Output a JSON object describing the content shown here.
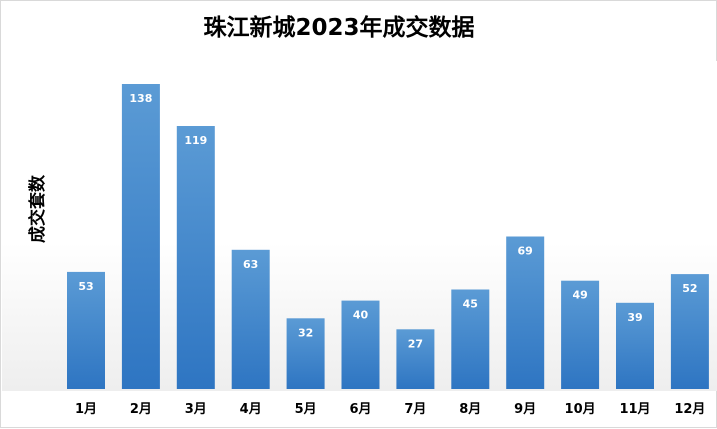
{
  "chart_data": {
    "type": "bar",
    "title": "珠江新城2023年成交数据",
    "xlabel": "",
    "ylabel": "成交套数",
    "categories": [
      "1月",
      "2月",
      "3月",
      "4月",
      "5月",
      "6月",
      "7月",
      "8月",
      "9月",
      "10月",
      "11月",
      "12月"
    ],
    "values": [
      53,
      138,
      119,
      63,
      32,
      40,
      27,
      45,
      69,
      49,
      39,
      52
    ],
    "ylim": [
      0,
      145
    ],
    "grid": false,
    "legend": "none",
    "bar_color_top": "#5b9bd5",
    "bar_color_bottom": "#2e75c2",
    "label_color": "#ffffff"
  }
}
